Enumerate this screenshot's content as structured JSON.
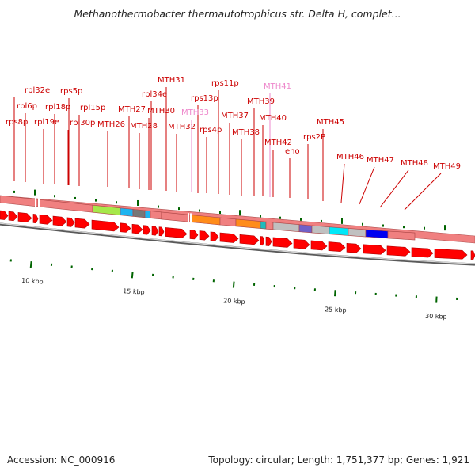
{
  "title": "Methanothermobacter thermautotrophicus str. Delta H, complet...",
  "footer": {
    "accession": "Accession: NC_000916",
    "summary": "Topology: circular; Length: 1,751,377 bp; Genes: 1,921"
  },
  "colors": {
    "gene_label": "#cc0000",
    "gene_label_faded": "#ee88cc",
    "leader_line": "#cc0000",
    "forward_strand": "#ff0000",
    "feature_track": "#f08080",
    "backbone": "#888888",
    "tick": "#006400"
  },
  "gene_labels": [
    {
      "text": "rpl32e"
    },
    {
      "text": "rpl6p"
    },
    {
      "text": "rps8p"
    },
    {
      "text": "rpl18p"
    },
    {
      "text": "rpl19e"
    },
    {
      "text": "rps5p"
    },
    {
      "text": "rpl15p"
    },
    {
      "text": "rpl30p"
    },
    {
      "text": "MTH26"
    },
    {
      "text": "MTH27"
    },
    {
      "text": "MTH28"
    },
    {
      "text": "rpl34e"
    },
    {
      "text": "MTH30"
    },
    {
      "text": "MTH31"
    },
    {
      "text": "MTH32"
    },
    {
      "text": "MTH33",
      "faded": true
    },
    {
      "text": "rps13p"
    },
    {
      "text": "rps4p"
    },
    {
      "text": "rps11p"
    },
    {
      "text": "MTH37"
    },
    {
      "text": "MTH38"
    },
    {
      "text": "MTH39"
    },
    {
      "text": "MTH40"
    },
    {
      "text": "MTH41",
      "faded": true
    },
    {
      "text": "MTH42"
    },
    {
      "text": "eno"
    },
    {
      "text": "rps2P"
    },
    {
      "text": "MTH45"
    },
    {
      "text": "MTH46"
    },
    {
      "text": "MTH47"
    },
    {
      "text": "MTH48"
    },
    {
      "text": "MTH49"
    }
  ],
  "feature_blocks": [
    {
      "color": "#f08080"
    },
    {
      "color": "#f08080"
    },
    {
      "color": "#a6e84a"
    },
    {
      "color": "#1eb4f0"
    },
    {
      "color": "#777777"
    },
    {
      "color": "#1eb4f0"
    },
    {
      "color": "#f08080"
    },
    {
      "color": "#f08080"
    },
    {
      "color": "#ff8c1a"
    },
    {
      "color": "#f08080"
    },
    {
      "color": "#ff8c1a"
    },
    {
      "color": "#1ebcbc"
    },
    {
      "color": "#f08080"
    },
    {
      "color": "#c0c0c0"
    },
    {
      "color": "#7060c8"
    },
    {
      "color": "#c0c0c0"
    },
    {
      "color": "#00e8f8"
    },
    {
      "color": "#c0c0c0"
    },
    {
      "color": "#0000f0"
    },
    {
      "color": "#f08080"
    }
  ],
  "scale": [
    {
      "label": "10 kbp"
    },
    {
      "label": "15 kbp"
    },
    {
      "label": "20 kbp"
    },
    {
      "label": "25 kbp"
    },
    {
      "label": "30 kbp"
    }
  ]
}
